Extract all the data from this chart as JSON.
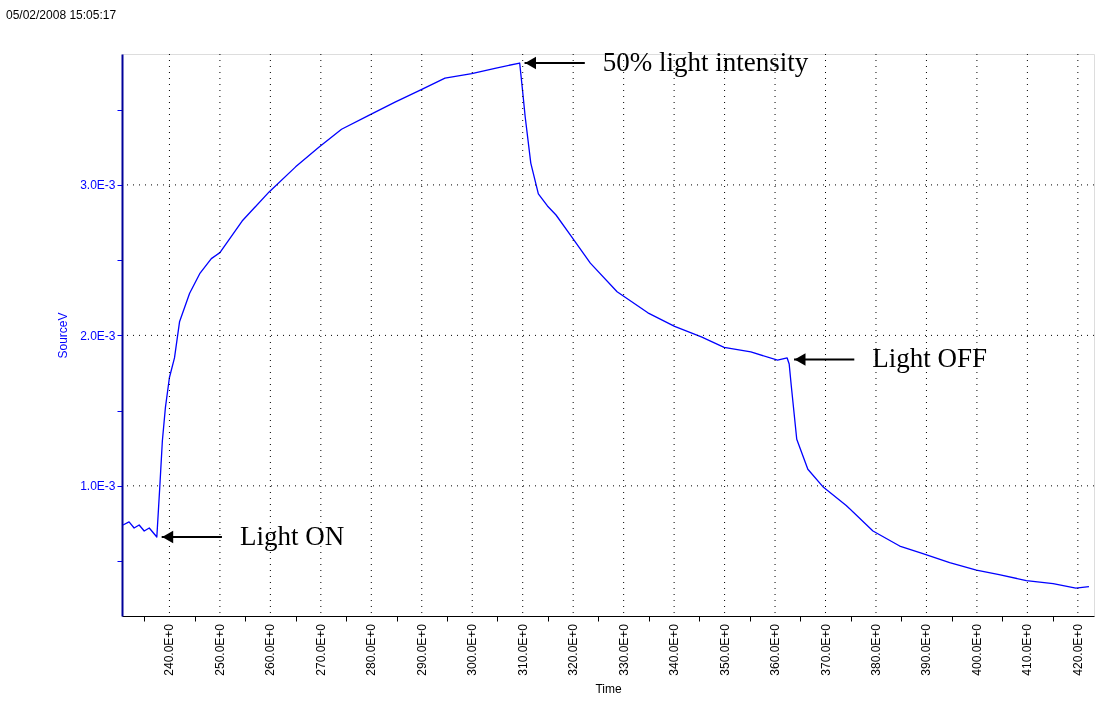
{
  "chart_data": {
    "type": "line",
    "xlabel": "Time",
    "ylabel": "SourceV",
    "x": [
      230.8,
      232,
      233,
      234,
      235,
      236,
      237,
      237.5,
      238.1,
      238.6,
      239.2,
      240,
      241,
      242,
      244,
      246,
      248.3,
      250,
      254.4,
      259.8,
      265,
      269.6,
      274.1,
      279.4,
      284.7,
      289.7,
      294.6,
      299.9,
      304.5,
      309.4,
      309.9,
      310.5,
      311.6,
      313.1,
      314.9,
      316.6,
      319.6,
      323.4,
      328.7,
      334.8,
      340.1,
      345.4,
      349.9,
      355.2,
      360.5,
      362.4,
      362.8,
      363.2,
      364.3,
      366.5,
      369.6,
      374.1,
      379.4,
      384.7,
      389.3,
      394.6,
      399.9,
      404.4,
      409.8,
      415.1,
      419.6,
      422.2
    ],
    "series": [
      {
        "color": "#0000ff",
        "values": [
          0.00074,
          0.00076,
          0.00072,
          0.00074,
          0.0007,
          0.00072,
          0.00068,
          0.00066,
          0.001,
          0.0013,
          0.00152,
          0.00172,
          0.00185,
          0.00209,
          0.00228,
          0.00241,
          0.00251,
          0.00255,
          0.00276,
          0.002955,
          0.00312,
          0.00325,
          0.00337,
          0.00346,
          0.00355,
          0.00363,
          0.00371,
          0.00374,
          0.003775,
          0.00381,
          0.00365,
          0.00345,
          0.003145,
          0.00294,
          0.00286,
          0.0028,
          0.00266,
          0.00248,
          0.00229,
          0.00215,
          0.00206,
          0.00199,
          0.00192,
          0.00189,
          0.001835,
          0.00185,
          0.00181,
          0.00167,
          0.00131,
          0.00111,
          0.00099,
          0.00087,
          0.0007,
          0.0006,
          0.00055,
          0.00049,
          0.00044,
          0.00041,
          0.00037,
          0.00035,
          0.00032,
          0.00033
        ]
      }
    ],
    "xlim": [
      230.6,
      423.2
    ],
    "ylim": [
      0.000135,
      0.00387
    ],
    "xticks": [
      {
        "value": 235,
        "label": null
      },
      {
        "value": 240,
        "label": "240.0E+0"
      },
      {
        "value": 245,
        "label": null
      },
      {
        "value": 250,
        "label": "250.0E+0"
      },
      {
        "value": 255,
        "label": null
      },
      {
        "value": 260,
        "label": "260.0E+0"
      },
      {
        "value": 265,
        "label": null
      },
      {
        "value": 270,
        "label": "270.0E+0"
      },
      {
        "value": 275,
        "label": null
      },
      {
        "value": 280,
        "label": "280.0E+0"
      },
      {
        "value": 285,
        "label": null
      },
      {
        "value": 290,
        "label": "290.0E+0"
      },
      {
        "value": 295,
        "label": null
      },
      {
        "value": 300,
        "label": "300.0E+0"
      },
      {
        "value": 305,
        "label": null
      },
      {
        "value": 310,
        "label": "310.0E+0"
      },
      {
        "value": 315,
        "label": null
      },
      {
        "value": 320,
        "label": "320.0E+0"
      },
      {
        "value": 325,
        "label": null
      },
      {
        "value": 330,
        "label": "330.0E+0"
      },
      {
        "value": 335,
        "label": null
      },
      {
        "value": 340,
        "label": "340.0E+0"
      },
      {
        "value": 345,
        "label": null
      },
      {
        "value": 350,
        "label": "350.0E+0"
      },
      {
        "value": 355,
        "label": null
      },
      {
        "value": 360,
        "label": "360.0E+0"
      },
      {
        "value": 365,
        "label": null
      },
      {
        "value": 370,
        "label": "370.0E+0"
      },
      {
        "value": 375,
        "label": null
      },
      {
        "value": 380,
        "label": "380.0E+0"
      },
      {
        "value": 385,
        "label": null
      },
      {
        "value": 390,
        "label": "390.0E+0"
      },
      {
        "value": 395,
        "label": null
      },
      {
        "value": 400,
        "label": "400.0E+0"
      },
      {
        "value": 405,
        "label": null
      },
      {
        "value": 410,
        "label": "410.0E+0"
      },
      {
        "value": 415,
        "label": null
      },
      {
        "value": 420,
        "label": "420.0E+0"
      }
    ],
    "yticks": [
      {
        "value": 0.0005,
        "label": null
      },
      {
        "value": 0.001,
        "label": "1.0E-3"
      },
      {
        "value": 0.0015,
        "label": null
      },
      {
        "value": 0.002,
        "label": "2.0E-3"
      },
      {
        "value": 0.0025,
        "label": null
      },
      {
        "value": 0.003,
        "label": "3.0E-3"
      },
      {
        "value": 0.0035,
        "label": null
      }
    ],
    "grid": true,
    "marker": "none",
    "line_style": "solid",
    "annotations": [
      "05/02/2008 15:05:17",
      {
        "text": "Light ON",
        "x": 237.5,
        "y": 0.00066
      },
      {
        "text": "50% light intensity",
        "x": 309.4,
        "y": 0.00381
      },
      {
        "text": "Light OFF",
        "x": 362.8,
        "y": 0.00184
      }
    ]
  }
}
